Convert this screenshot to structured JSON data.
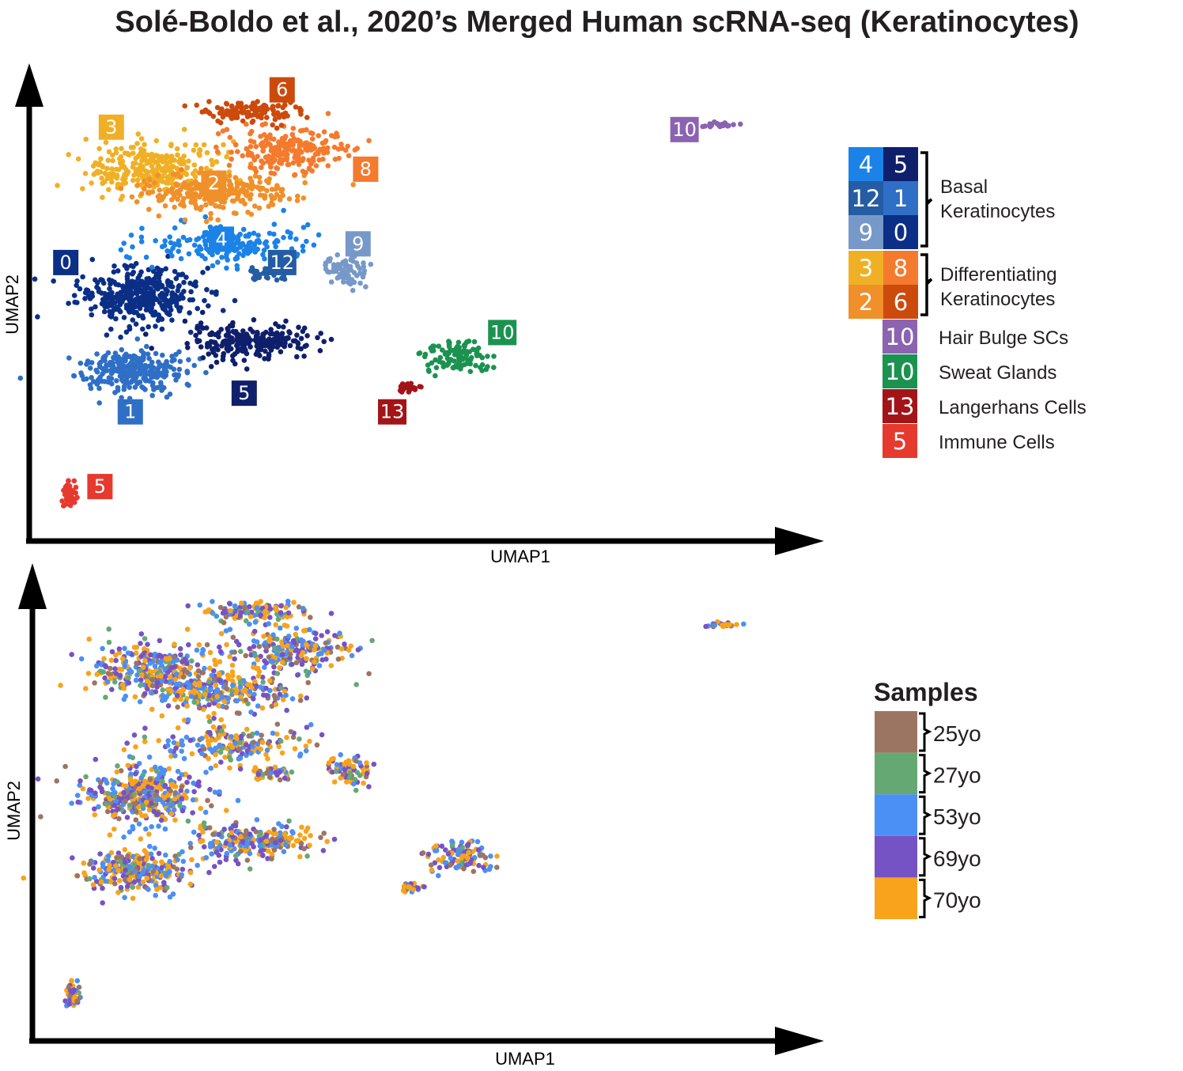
{
  "chart_data": [
    {
      "type": "scatter",
      "title": "Solé-Boldo et al., 2020’s Merged Human scRNA-seq (Keratinocytes)",
      "xlabel": "UMAP1",
      "ylabel": "UMAP2",
      "xlim": [
        0,
        100
      ],
      "ylim": [
        0,
        100
      ],
      "color_by": "cluster",
      "clusters": [
        {
          "label": "0",
          "color": "#0b2f86",
          "center": [
            14,
            52
          ],
          "spread": [
            6.5,
            5
          ],
          "n": 380,
          "label_at": [
            4.5,
            59
          ]
        },
        {
          "label": "1",
          "color": "#2f6fc6",
          "center": [
            13,
            36
          ],
          "spread": [
            6,
            3.5
          ],
          "n": 300,
          "label_at": [
            13,
            27
          ]
        },
        {
          "label": "5",
          "color": "#0f1f6b",
          "center": [
            29,
            42
          ],
          "spread": [
            7,
            3
          ],
          "n": 230,
          "label_at": [
            28,
            31
          ]
        },
        {
          "label": "4",
          "color": "#1b82e8",
          "center": [
            26,
            63
          ],
          "spread": [
            9,
            3.5
          ],
          "n": 180,
          "label_at": [
            25,
            64
          ]
        },
        {
          "label": "12",
          "color": "#245da4",
          "center": [
            31,
            56.5
          ],
          "spread": [
            2.5,
            1.2
          ],
          "n": 40,
          "label_at": [
            33,
            59
          ]
        },
        {
          "label": "9",
          "color": "#7799c9",
          "center": [
            41.5,
            57
          ],
          "spread": [
            2.5,
            2.5
          ],
          "n": 70,
          "label_at": [
            43,
            63
          ]
        },
        {
          "label": "3",
          "color": "#f0b026",
          "center": [
            16,
            79
          ],
          "spread": [
            7,
            5
          ],
          "n": 290,
          "label_at": [
            10.5,
            88
          ]
        },
        {
          "label": "2",
          "color": "#f0902a",
          "center": [
            24,
            74
          ],
          "spread": [
            8,
            3.5
          ],
          "n": 260,
          "label_at": [
            24,
            76
          ]
        },
        {
          "label": "8",
          "color": "#f47a2d",
          "center": [
            34,
            83
          ],
          "spread": [
            7,
            4
          ],
          "n": 220,
          "label_at": [
            44,
            79
          ]
        },
        {
          "label": "6",
          "color": "#cc4a0b",
          "center": [
            29,
            91.5
          ],
          "spread": [
            5,
            2
          ],
          "n": 120,
          "label_at": [
            33,
            96
          ]
        },
        {
          "label": "10",
          "color": "#8b63b0",
          "center": [
            90.5,
            88.5
          ],
          "spread": [
            2,
            0.4
          ],
          "n": 28,
          "label_at": [
            86,
            87.5
          ]
        },
        {
          "label": "10",
          "color": "#1c9250",
          "center": [
            56,
            39
          ],
          "spread": [
            3.5,
            3
          ],
          "n": 110,
          "label_at": [
            62,
            44
          ]
        },
        {
          "label": "13",
          "color": "#a31418",
          "center": [
            50,
            32
          ],
          "spread": [
            1.6,
            0.8
          ],
          "n": 22,
          "label_at": [
            47.5,
            27
          ]
        },
        {
          "label": "5",
          "color": "#e63a2f",
          "center": [
            5,
            9
          ],
          "spread": [
            0.8,
            2
          ],
          "n": 45,
          "label_at": [
            9,
            11
          ]
        }
      ]
    },
    {
      "type": "scatter",
      "xlabel": "UMAP1",
      "ylabel": "UMAP2",
      "xlim": [
        0,
        100
      ],
      "ylim": [
        0,
        100
      ],
      "color_by": "sample",
      "legend_title": "Samples",
      "series": [
        {
          "name": "25yo",
          "color": "#9c7562",
          "weight": 0.12
        },
        {
          "name": "27yo",
          "color": "#66a874",
          "weight": 0.08
        },
        {
          "name": "53yo",
          "color": "#4b90f5",
          "weight": 0.24
        },
        {
          "name": "69yo",
          "color": "#7653c4",
          "weight": 0.26
        },
        {
          "name": "70yo",
          "color": "#f8a31b",
          "weight": 0.3
        }
      ]
    }
  ],
  "legend_clusters": {
    "groups": [
      {
        "name": "Basal",
        "name2": "Keratinocytes"
      },
      {
        "name": "Differentiating",
        "name2": "Keratinocytes"
      }
    ],
    "basal_cells": [
      {
        "label": "4",
        "color": "#1b82e8"
      },
      {
        "label": "5",
        "color": "#0f1f6b"
      },
      {
        "label": "12",
        "color": "#245da4"
      },
      {
        "label": "1",
        "color": "#2f6fc6"
      },
      {
        "label": "9",
        "color": "#7799c9"
      },
      {
        "label": "0",
        "color": "#0b2f86"
      }
    ],
    "diff_cells": [
      {
        "label": "3",
        "color": "#f0b026"
      },
      {
        "label": "8",
        "color": "#f47a2d"
      },
      {
        "label": "2",
        "color": "#f0902a"
      },
      {
        "label": "6",
        "color": "#cc4a0b"
      }
    ],
    "singles": [
      {
        "label": "10",
        "color": "#8b63b0",
        "name": "Hair Bulge SCs"
      },
      {
        "label": "10",
        "color": "#1c9250",
        "name": "Sweat Glands"
      },
      {
        "label": "13",
        "color": "#a31418",
        "name": "Langerhans Cells"
      },
      {
        "label": "5",
        "color": "#e63a2f",
        "name": "Immune Cells"
      }
    ]
  }
}
